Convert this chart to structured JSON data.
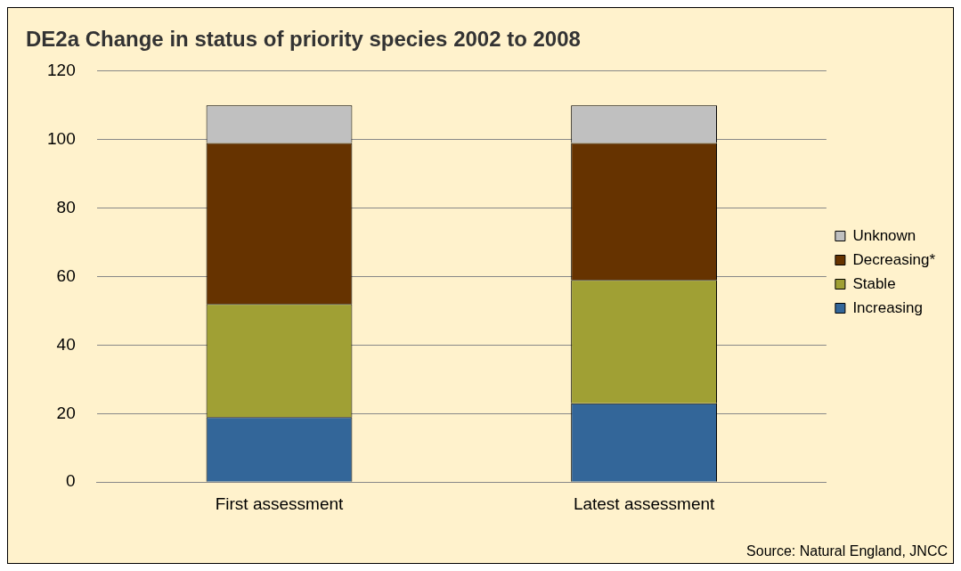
{
  "chart_data": {
    "type": "bar",
    "title": "DE2a Change in status of priority species 2002 to 2008",
    "categories": [
      "First assessment",
      "Latest assessment"
    ],
    "stacked": true,
    "series": [
      {
        "name": "Increasing",
        "color": "#336699",
        "values": [
          19,
          23
        ]
      },
      {
        "name": "Stable",
        "color": "#a0a034",
        "values": [
          33,
          36
        ]
      },
      {
        "name": "Decreasing*",
        "color": "#663300",
        "values": [
          47,
          40
        ]
      },
      {
        "name": "Unknown",
        "color": "#c0c0c0",
        "values": [
          11,
          11
        ]
      }
    ],
    "ylim": [
      0,
      120
    ],
    "yticks": [
      0,
      20,
      40,
      60,
      80,
      100,
      120
    ],
    "grid": "y",
    "legend": "right",
    "annotations": [
      "Source: Natural England, JNCC"
    ]
  }
}
